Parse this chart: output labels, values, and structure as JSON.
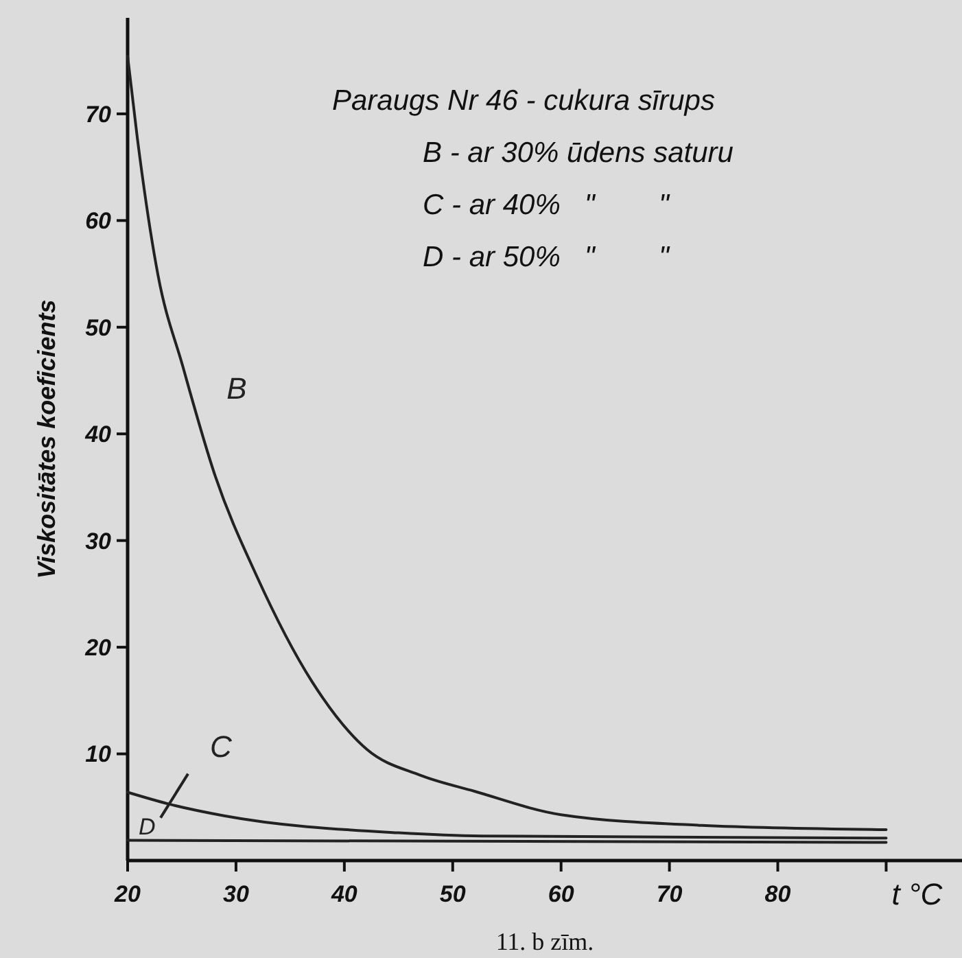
{
  "chart_data": {
    "type": "line",
    "title": "Paraugs Nr 46 - cukura sīrups",
    "xlabel": "t °C",
    "ylabel": "Viskositātes koeficients",
    "annotations": [
      "B - ar 30% ūdens saturu",
      "C - ar 40%   \"        \"",
      "D - ar 50%   \"        \"",
      "11. b zīm."
    ],
    "series": [
      {
        "name": "B",
        "color": "#222222",
        "x": [
          20,
          20.9,
          22.8,
          25.1,
          28.1,
          31.9,
          37,
          42.1,
          47,
          52,
          60,
          73,
          90
        ],
        "values": [
          75.4,
          67.7,
          54.9,
          46.3,
          36,
          26.7,
          16.8,
          10.4,
          8,
          6.5,
          4.3,
          3.3,
          2.9
        ]
      },
      {
        "name": "C",
        "color": "#222222",
        "x": [
          20,
          23.8,
          28.9,
          45,
          52.7,
          90
        ],
        "values": [
          6.4,
          5.3,
          4.2,
          2.6,
          2.3,
          2.1
        ]
      },
      {
        "name": "D",
        "color": "#222222",
        "x": [
          20,
          90
        ],
        "values": [
          1.9,
          1.7
        ]
      }
    ],
    "xlim": [
      20,
      97
    ],
    "ylim": [
      0,
      79
    ],
    "xticks": [
      20,
      30,
      40,
      50,
      60,
      70,
      80,
      {
        "value": 90,
        "label": null
      }
    ],
    "yticks": [
      10,
      20,
      30,
      40,
      50,
      60,
      70
    ],
    "grid": false,
    "marker": "none",
    "line_style": "solid"
  }
}
